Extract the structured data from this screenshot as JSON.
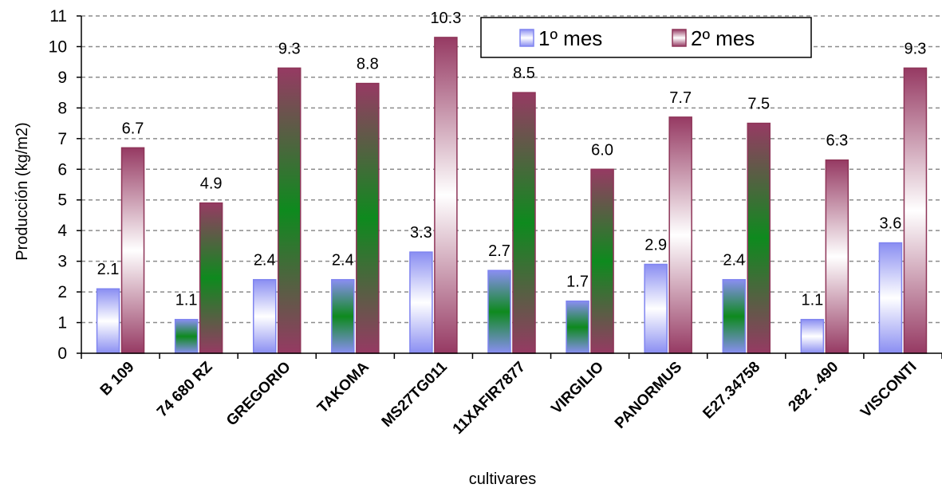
{
  "chart_data": {
    "type": "bar",
    "categories": [
      "B 109",
      "74 680 RZ",
      "GREGORIO",
      "TAKOMA",
      "MS27TG011",
      "11XAFIR7877",
      "VIRGILIO",
      "PANORMUS",
      "E27.34758",
      "282 . 490",
      "VISCONTI"
    ],
    "series": [
      {
        "name": "1º mes",
        "values": [
          2.1,
          1.1,
          2.4,
          2.4,
          3.3,
          2.7,
          1.7,
          2.9,
          2.4,
          1.1,
          3.6
        ],
        "labels": [
          "2.1",
          "1.1",
          "2.4",
          "2.4",
          "3.3",
          "2.7",
          "1.7",
          "2.9",
          "2.4",
          "1.1",
          "3.6"
        ],
        "fills": [
          "white",
          "green",
          "white",
          "green",
          "white",
          "green",
          "green",
          "white",
          "green",
          "white",
          "white"
        ]
      },
      {
        "name": "2º mes",
        "values": [
          6.7,
          4.9,
          9.3,
          8.8,
          10.3,
          8.5,
          6.0,
          7.7,
          7.5,
          6.3,
          9.3
        ],
        "labels": [
          "6.7",
          "4.9",
          "9.3",
          "8.8",
          "10.3",
          "8.5",
          "6.0",
          "7.7",
          "7.5",
          "6.3",
          "9.3"
        ],
        "fills": [
          "white",
          "green",
          "green",
          "green",
          "white",
          "green",
          "green",
          "white",
          "green",
          "white",
          "white"
        ]
      }
    ],
    "title": "",
    "xlabel": "cultivares",
    "ylabel": "Producción (kg/m2)",
    "ylim": [
      0,
      11
    ],
    "yticks": [
      "0",
      "1",
      "2",
      "3",
      "4",
      "5",
      "6",
      "7",
      "8",
      "9",
      "10",
      "11"
    ],
    "grid": true,
    "legend_position": "top-right",
    "colors": {
      "series1_edge": "#7f84f0",
      "series2_edge": "#8e3558",
      "grid": "#8c8c8c",
      "axis": "#000000"
    }
  }
}
